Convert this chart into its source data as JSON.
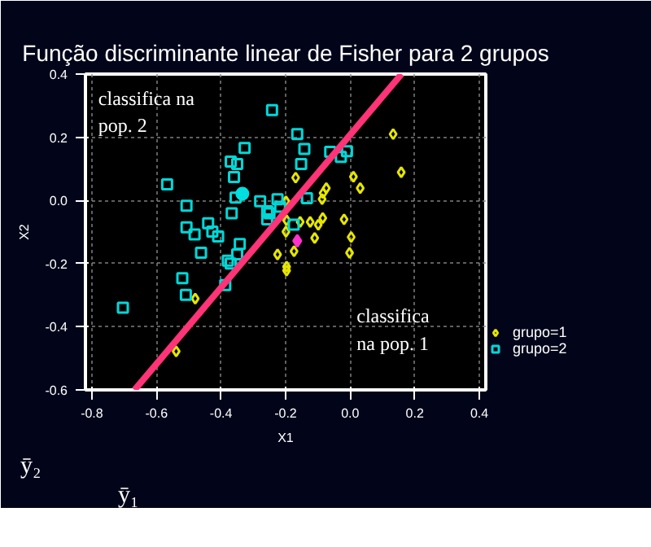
{
  "chart_data": {
    "type": "scatter",
    "title": "Função discriminante linear de Fisher para 2 grupos",
    "xlabel": "X1",
    "ylabel": "X2",
    "xlim": [
      -0.82,
      0.42
    ],
    "ylim": [
      -0.6,
      0.4
    ],
    "xticks": [
      -0.8,
      -0.6,
      -0.4,
      -0.2,
      {
        "value": 0,
        "label": "0.0"
      },
      0.2,
      0.4
    ],
    "yticks": [
      -0.6,
      -0.4,
      -0.2,
      {
        "value": 0,
        "label": "0.0"
      },
      0.2,
      0.4
    ],
    "grid": true,
    "legend": "bottom right",
    "series": [
      {
        "name": "grupo=1",
        "color": "#e6e600",
        "marker": "diamond",
        "x": [
          0.133,
          0.158,
          -0.169,
          0.01,
          0.031,
          -0.074,
          -0.084,
          -0.087,
          -0.199,
          -0.085,
          -0.019,
          -0.124,
          -0.155,
          -0.099,
          -0.197,
          -0.199,
          -0.11,
          0.003,
          -0.174,
          -0.225,
          -0.002,
          -0.197,
          -0.197,
          -0.48,
          -0.539
        ],
        "values": [
          0.21,
          0.089,
          0.072,
          0.075,
          0.039,
          0.039,
          0.023,
          0.004,
          -0.003,
          -0.056,
          -0.06,
          -0.068,
          -0.068,
          -0.077,
          -0.063,
          -0.099,
          -0.119,
          -0.116,
          -0.161,
          -0.171,
          -0.166,
          -0.21,
          -0.222,
          -0.311,
          -0.478
        ]
      },
      {
        "name": "grupo=2",
        "color": "#00d8d8",
        "marker": "square",
        "x": [
          -0.567,
          -0.507,
          -0.507,
          -0.482,
          -0.44,
          -0.427,
          -0.409,
          -0.462,
          -0.37,
          -0.35,
          -0.327,
          -0.36,
          -0.355,
          -0.367,
          -0.279,
          -0.257,
          -0.342,
          -0.35,
          -0.379,
          -0.242,
          -0.164,
          -0.142,
          -0.152,
          -0.062,
          -0.029,
          -0.01,
          -0.134,
          -0.225,
          -0.217,
          -0.25,
          -0.257,
          -0.175,
          -0.37,
          -0.52,
          -0.509,
          -0.704,
          -0.387
        ],
        "values": [
          0.051,
          -0.017,
          -0.085,
          -0.108,
          -0.072,
          -0.099,
          -0.114,
          -0.166,
          0.123,
          0.115,
          0.166,
          0.074,
          0.009,
          -0.041,
          -0.003,
          -0.034,
          -0.138,
          -0.171,
          -0.191,
          0.286,
          0.21,
          0.163,
          0.115,
          0.154,
          0.138,
          0.156,
          0.007,
          0.004,
          -0.02,
          -0.041,
          -0.06,
          -0.077,
          -0.2,
          -0.246,
          -0.299,
          -0.34,
          -0.268
        ]
      },
      {
        "color": "#00e0e0",
        "marker": "circle",
        "x": [
          -0.334
        ],
        "values": [
          0.021
        ]
      },
      {
        "color": "#ff33cc",
        "marker": "diamond",
        "x": [
          -0.164
        ],
        "values": [
          -0.128
        ]
      },
      {
        "type": "line",
        "color": "#ff3377",
        "x": [
          -0.668,
          0.159
        ],
        "values": [
          -0.6,
          0.4
        ]
      }
    ],
    "annotations": [
      "classifica na\npop. 2",
      "classifica\nna pop. 1",
      "ȳ₂",
      "ȳ₁"
    ]
  }
}
